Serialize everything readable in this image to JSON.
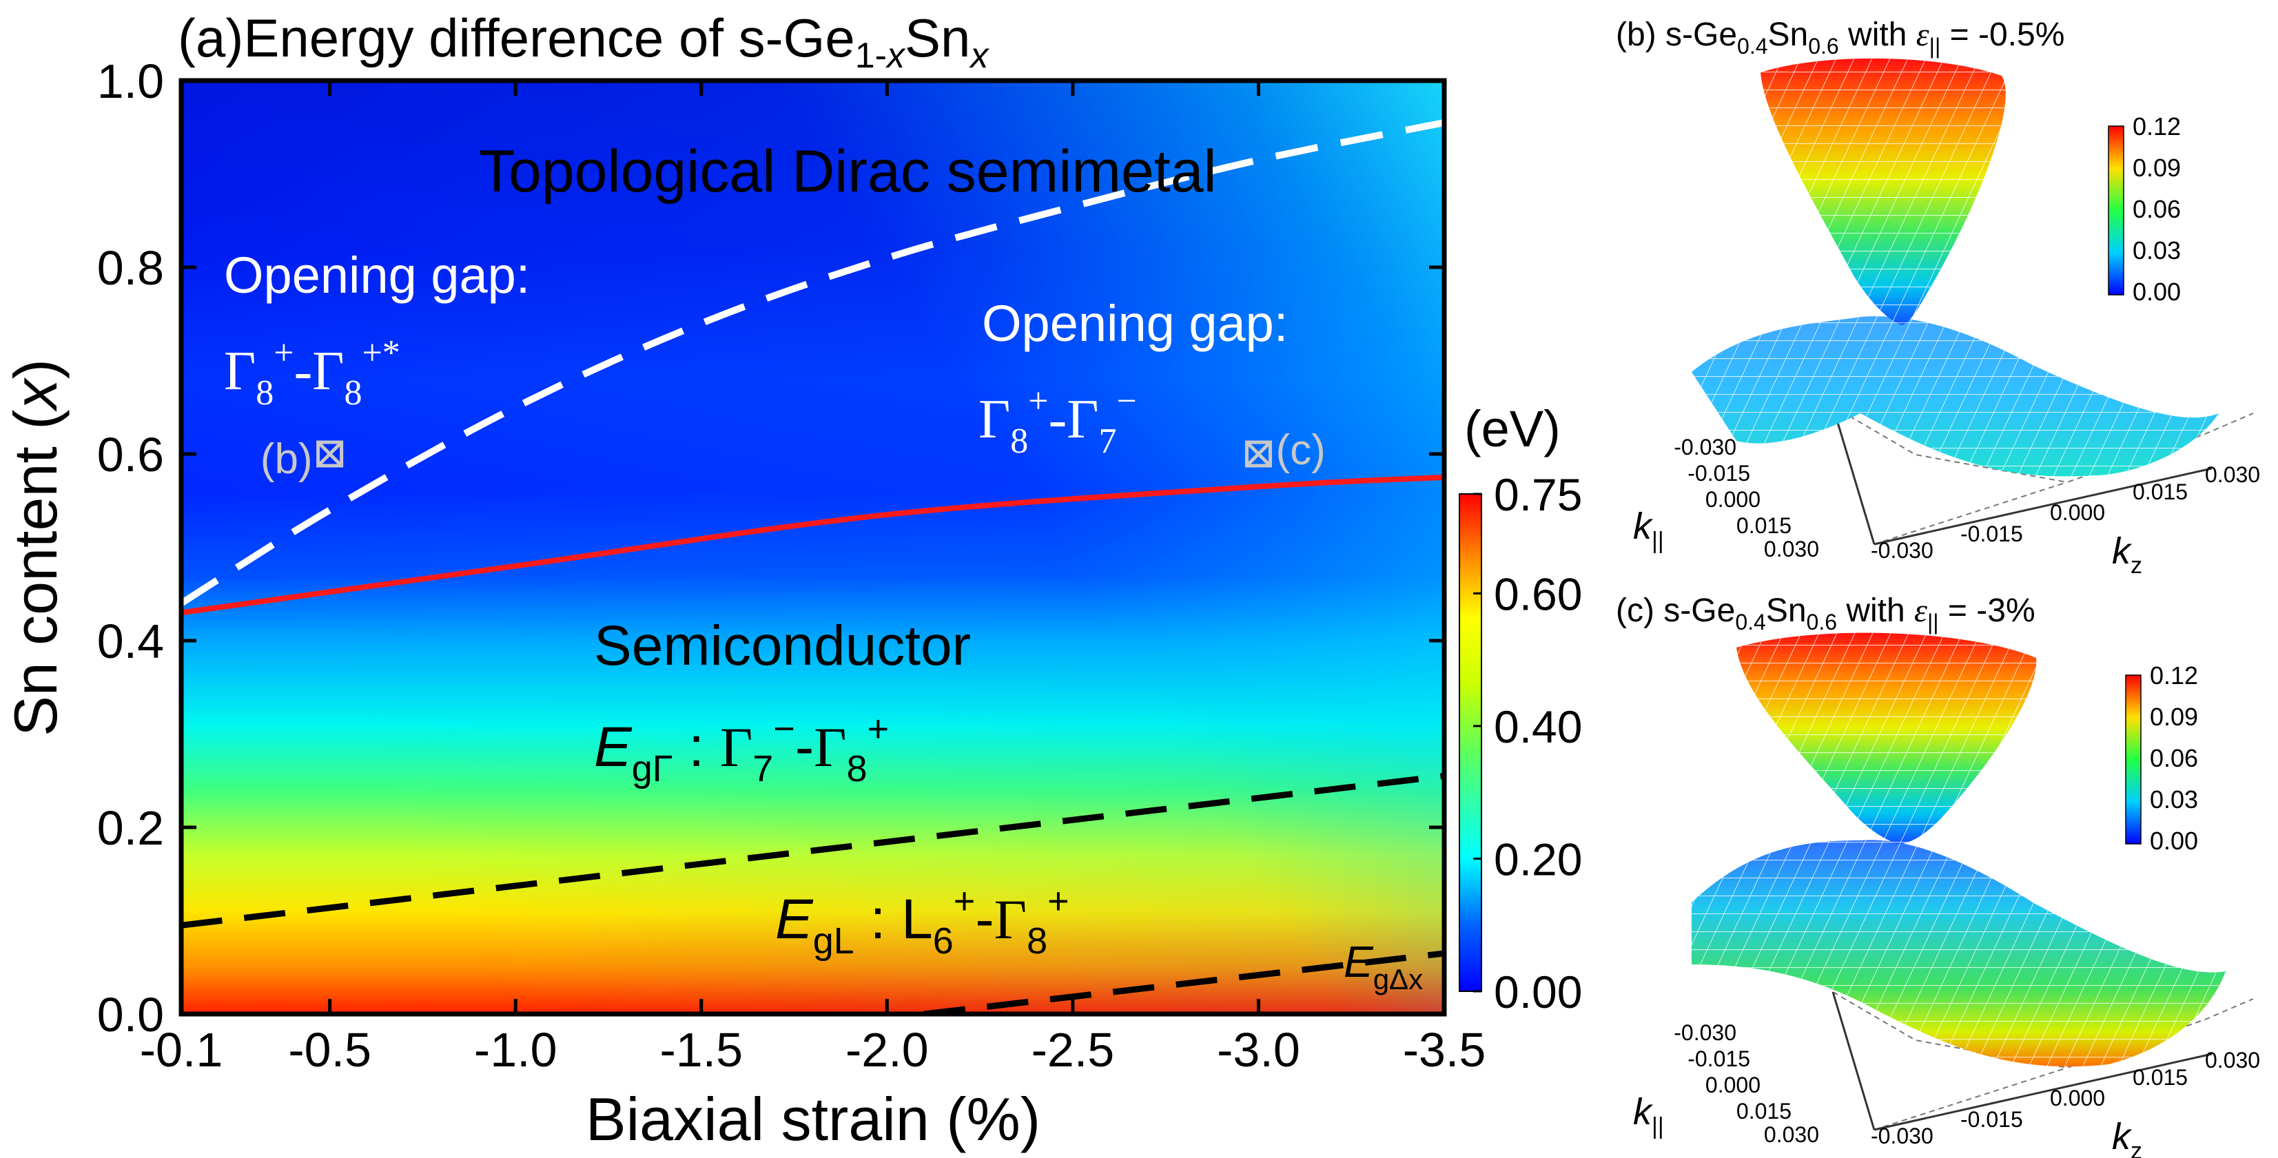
{
  "chart_data": [
    {
      "id": "a",
      "type": "heatmap",
      "title_prefix": "(a)Energy difference of s-Ge",
      "title_sub1": "1-",
      "title_sub1_italic": "x",
      "title_mid": "Sn",
      "title_sub2_italic": "x",
      "xlabel": "Biaxial strain (%)",
      "ylabel_prefix": "Sn content (",
      "ylabel_italic": "x",
      "ylabel_suffix": ")",
      "xlim": [
        -0.1,
        -3.5
      ],
      "ylim": [
        0.0,
        1.0
      ],
      "xticks": [
        -0.1,
        -0.5,
        -1.0,
        -1.5,
        -2.0,
        -2.5,
        -3.0,
        -3.5
      ],
      "xtick_labels": [
        "-0.1",
        "-0.5",
        "-1.0",
        "-1.5",
        "-2.0",
        "-2.5",
        "-3.0",
        "-3.5"
      ],
      "yticks": [
        0.0,
        0.2,
        0.4,
        0.6,
        0.8,
        1.0
      ],
      "ytick_labels": [
        "0.0",
        "0.2",
        "0.4",
        "0.6",
        "0.8",
        "1.0"
      ],
      "colorbar": {
        "unit": "(eV)",
        "range": [
          0.0,
          0.75
        ],
        "ticks": [
          0.0,
          0.2,
          0.4,
          0.6,
          0.75
        ],
        "tick_labels": [
          "0.00",
          "0.20",
          "0.40",
          "0.60",
          "0.75"
        ]
      },
      "red_boundary": {
        "x": [
          -0.1,
          -1.0,
          -2.0,
          -3.0,
          -3.5
        ],
        "y": [
          0.43,
          0.48,
          0.535,
          0.565,
          0.575
        ]
      },
      "white_dashed_boundary": {
        "x": [
          -0.1,
          -0.5,
          -1.0,
          -1.5,
          -2.0,
          -2.5,
          -3.0,
          -3.5
        ],
        "y": [
          0.44,
          0.54,
          0.65,
          0.74,
          0.81,
          0.865,
          0.915,
          0.955
        ]
      },
      "black_dashed_upper": {
        "x": [
          -0.1,
          -3.5
        ],
        "y": [
          0.095,
          0.255
        ]
      },
      "black_dashed_lower": {
        "x": [
          -2.1,
          -3.5
        ],
        "y": [
          0.0,
          0.065
        ]
      },
      "points": [
        {
          "label": "(b)",
          "x": -0.5,
          "y": 0.6
        },
        {
          "label": "(c)",
          "x": -3.0,
          "y": 0.6
        }
      ],
      "region_labels": {
        "dirac": "Topological Dirac semimetal",
        "gap_left": "Opening gap:",
        "gap_right": "Opening gap:",
        "semiconductor": "Semiconductor"
      },
      "gamma_left": {
        "b1": "Γ",
        "s1": "8",
        "p1": "+",
        "dash": "-",
        "b2": "Γ",
        "s2": "8",
        "p2": "+*"
      },
      "gamma_right": {
        "b1": "Γ",
        "s1": "8",
        "p1": "+",
        "dash": "-",
        "b2": "Γ",
        "s2": "7",
        "p2": "−"
      },
      "egG": {
        "E": "E",
        "sub": "gΓ",
        "colon": " : ",
        "b1": "Γ",
        "s1": "7",
        "p1": "−",
        "dash": "-",
        "b2": "Γ",
        "s2": "8",
        "p2": "+"
      },
      "egL": {
        "E": "E",
        "sub": "gL",
        "colon": " : ",
        "b1": "L",
        "s1": "6",
        "p1": "+",
        "dash": "-",
        "b2": "Γ",
        "s2": "8",
        "p2": "+"
      },
      "egD": {
        "E": "E",
        "sub": "gΔx"
      }
    },
    {
      "id": "b",
      "type": "surface",
      "title_prefix": "(b) s-Ge",
      "sub1": "0.4",
      "mid": "Sn",
      "sub2": "0.6",
      "with": " with ",
      "eps": "ε",
      "eps_sub": "||",
      "value": " = -0.5%",
      "colorbar_ticks": [
        "0.12",
        "0.09",
        "0.06",
        "0.03",
        "0.00"
      ],
      "k_ticks": [
        "-0.030",
        "-0.015",
        "0.000",
        "0.015",
        "0.030"
      ],
      "kz_ticks": [
        "-0.030",
        "-0.015",
        "0.000",
        "0.015",
        "0.030"
      ],
      "axis_k": "k",
      "axis_k_sub": "||",
      "axis_kz": "k",
      "axis_kz_sub": "z"
    },
    {
      "id": "c",
      "type": "surface",
      "title_prefix": "(c) s-Ge",
      "sub1": "0.4",
      "mid": "Sn",
      "sub2": "0.6",
      "with": " with ",
      "eps": "ε",
      "eps_sub": "||",
      "value": " = -3%",
      "colorbar_ticks": [
        "0.12",
        "0.09",
        "0.06",
        "0.03",
        "0.00"
      ],
      "k_ticks": [
        "-0.030",
        "-0.015",
        "0.000",
        "0.015",
        "0.030"
      ],
      "kz_ticks": [
        "-0.030",
        "-0.015",
        "0.000",
        "0.015",
        "0.030"
      ],
      "axis_k": "k",
      "axis_k_sub": "||",
      "axis_kz": "k",
      "axis_kz_sub": "z"
    }
  ],
  "colors": {
    "jet": [
      "#00007f",
      "#0000ff",
      "#007fff",
      "#00ffff",
      "#7fff7f",
      "#ffff00",
      "#ff7f00",
      "#ff0000",
      "#7f0000"
    ],
    "red_line": "#ff1a1a",
    "white_line": "#ffffff",
    "black_line": "#000000",
    "marker": "#c8c8c8"
  }
}
